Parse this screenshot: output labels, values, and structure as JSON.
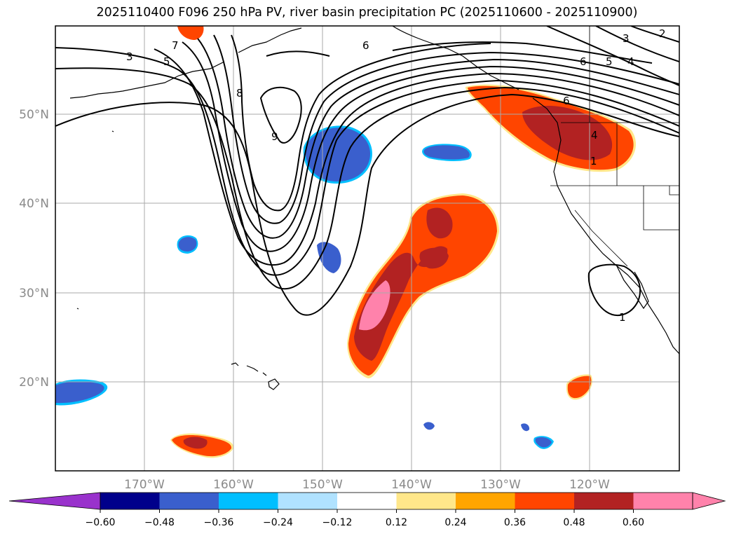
{
  "title": "2025110400 F096 250 hPa PV, river basin precipitation PC (2025110600 - 2025110900)",
  "map": {
    "lon_labels": [
      "170°W",
      "160°W",
      "150°W",
      "140°W",
      "130°W",
      "120°W"
    ],
    "lat_labels": [
      "50°N",
      "40°N",
      "30°N",
      "20°N"
    ],
    "pv_contour_labels": [
      "3",
      "5",
      "7",
      "8",
      "9",
      "6",
      "6",
      "5",
      "4",
      "3",
      "2",
      "6",
      "4",
      "1",
      "1"
    ]
  },
  "colorbar": {
    "tick_labels": [
      "−0.60",
      "−0.48",
      "−0.36",
      "−0.24",
      "−0.12",
      "0.12",
      "0.24",
      "0.36",
      "0.48",
      "0.60"
    ],
    "colors": [
      "#9932cc",
      "#00008b",
      "#3a5fcd",
      "#00bfff",
      "#b0e2ff",
      "#ffffff",
      "#ffe78a",
      "#ffa500",
      "#ff4500",
      "#b22222",
      "#ff82ab",
      "#ff82ab"
    ]
  },
  "colors": {
    "positive_mid": "#ff4500",
    "positive_high": "#b22222",
    "positive_max": "#ff82ab",
    "negative_mid": "#3a5fcd",
    "negative_light": "#00bfff",
    "contour": "#000000",
    "grid": "#aaaaaa"
  }
}
